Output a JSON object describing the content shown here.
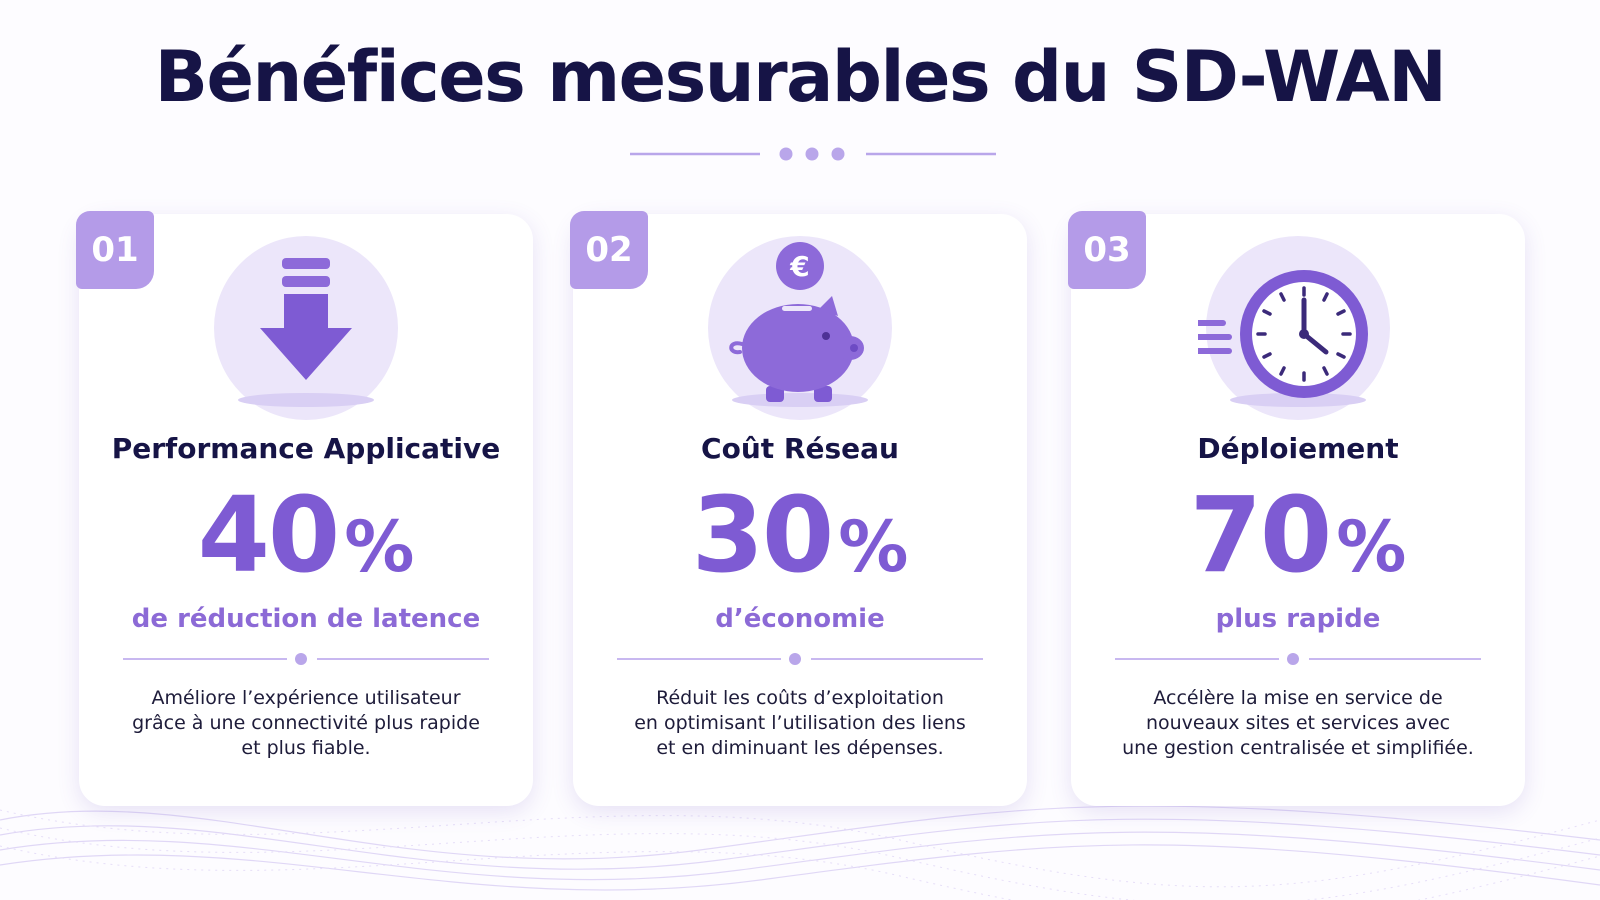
{
  "page": {
    "title": "Bénéfices mesurables du SD-WAN"
  },
  "colors": {
    "accent": "#7e5bd3",
    "accent_light": "#b49be8",
    "icon_bg": "#ece6fa",
    "title": "#161446"
  },
  "cards": [
    {
      "badge": "01",
      "icon": "arrow-down-icon",
      "title": "Performance Applicative",
      "value": "40",
      "unit": "%",
      "label": "de réduction de latence",
      "desc_lines": [
        "Améliore l’expérience utilisateur",
        "grâce à une connectivité plus rapide",
        "et plus fiable."
      ]
    },
    {
      "badge": "02",
      "icon": "piggy-bank-euro-icon",
      "title": "Coût Réseau",
      "value": "30",
      "unit": "%",
      "label": "d’économie",
      "desc_lines": [
        "Réduit les coûts d’exploitation",
        "en optimisant l’utilisation des liens",
        "et en diminuant les dépenses."
      ]
    },
    {
      "badge": "03",
      "icon": "fast-clock-icon",
      "title": "Déploiement",
      "value": "70",
      "unit": "%",
      "label": "plus rapide",
      "desc_lines": [
        "Accélère la mise en service de",
        "nouveaux sites et services avec",
        "une gestion centralisée et simplifiée."
      ]
    }
  ]
}
